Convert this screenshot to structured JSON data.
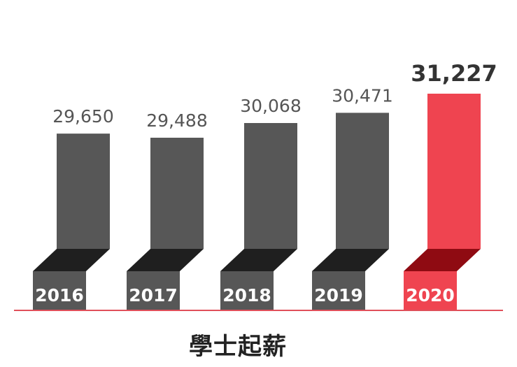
{
  "chart_data": {
    "type": "bar",
    "categories": [
      "2016",
      "2017",
      "2018",
      "2019",
      "2020"
    ],
    "values": [
      29650,
      29488,
      30068,
      30471,
      31227
    ],
    "value_labels": [
      "29,650",
      "29,488",
      "30,068",
      "30,471",
      "31,227"
    ],
    "title": "學士起薪",
    "highlight_index": 4,
    "grid": false,
    "legend": "none"
  },
  "colors": {
    "bar": "#575757",
    "bar_base_top": "#1f1f1f",
    "highlight_bar": "#ef4450",
    "highlight_base_top": "#8f0b12",
    "baseline": "#e0505a",
    "value_text": "#555555",
    "highlight_value_text": "#333333"
  }
}
